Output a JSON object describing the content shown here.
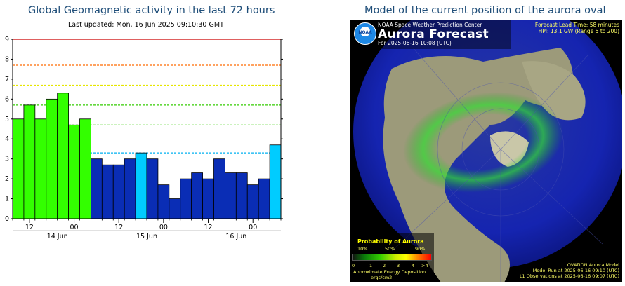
{
  "left_panel": {
    "title": "Global Geomagnetic activity in the last 72 hours",
    "updated": "Last updated: Mon, 16 Jun 2025 09:10:30 GMT"
  },
  "right_panel": {
    "title": "Model of the current position of the aurora oval",
    "org": "NOAA Space Weather Prediction Center",
    "logo_text": "NOAA",
    "heading": "Aurora Forecast",
    "forecast_for": "For 2025-06-16 10:08 (UTC)",
    "lead_time": "Forecast Lead Time:  58 minutes",
    "hpi": "HPI:  13.1 GW (Range 5 to 200)",
    "legend_title": "Probability of Aurora",
    "pct_labels": [
      "10%",
      "50%",
      "90%"
    ],
    "scale_labels": [
      "0",
      "1",
      "2",
      "3",
      "4",
      ">4"
    ],
    "energy_label": "Approximate Energy Deposition",
    "energy_units": "ergs/cm2",
    "model_name": "OVATION Aurora Model",
    "model_run": "Model Run at 2025-06-16 09:10 (UTC)",
    "l1_obs": "L1 Observations at 2025-06-16 09:07 (UTC)"
  },
  "chart_data": {
    "type": "bar",
    "title": "Global Geomagnetic activity in the last 72 hours",
    "xlabel": "",
    "ylabel": "",
    "ylim": [
      0,
      9
    ],
    "yticks": [
      0,
      1,
      2,
      3,
      4,
      5,
      6,
      7,
      8,
      9
    ],
    "grid": "off",
    "bar_values": [
      5,
      5.7,
      5,
      6,
      6.3,
      4.7,
      5,
      3,
      2.7,
      2.7,
      3,
      3.3,
      3,
      1.7,
      1,
      2,
      2.3,
      2,
      3,
      2.3,
      2.3,
      1.7,
      2,
      3.7
    ],
    "bar_colors": [
      "#33ff00",
      "#33ff00",
      "#33ff00",
      "#33ff00",
      "#33ff00",
      "#33ff00",
      "#33ff00",
      "#0a2db5",
      "#0a2db5",
      "#0a2db5",
      "#0a2db5",
      "#00ccff",
      "#0a2db5",
      "#0a2db5",
      "#0a2db5",
      "#0a2db5",
      "#0a2db5",
      "#0a2db5",
      "#0a2db5",
      "#0a2db5",
      "#0a2db5",
      "#0a2db5",
      "#0a2db5",
      "#00ccff"
    ],
    "x_hour_ticks": [
      {
        "bar_index": 1,
        "label": "12"
      },
      {
        "bar_index": 5,
        "label": "00"
      },
      {
        "bar_index": 9,
        "label": "12"
      },
      {
        "bar_index": 13,
        "label": "00"
      },
      {
        "bar_index": 17,
        "label": "12"
      },
      {
        "bar_index": 21,
        "label": "00"
      }
    ],
    "x_day_labels": [
      {
        "bar_index": 4,
        "label": "14 Jun"
      },
      {
        "bar_index": 12,
        "label": "15 Jun"
      },
      {
        "bar_index": 20,
        "label": "16 Jun"
      }
    ],
    "threshold_lines": [
      {
        "value": 9,
        "color": "#cc0000",
        "style": "solid"
      },
      {
        "value": 7.7,
        "color": "#ff6a00",
        "style": "dashed"
      },
      {
        "value": 6.7,
        "color": "#e6e600",
        "style": "dashed"
      },
      {
        "value": 5.7,
        "color": "#33cc00",
        "style": "dashed"
      },
      {
        "value": 4.7,
        "color": "#33cc00",
        "style": "dashed"
      },
      {
        "value": 3.3,
        "color": "#00b0f0",
        "style": "dashed"
      }
    ]
  }
}
